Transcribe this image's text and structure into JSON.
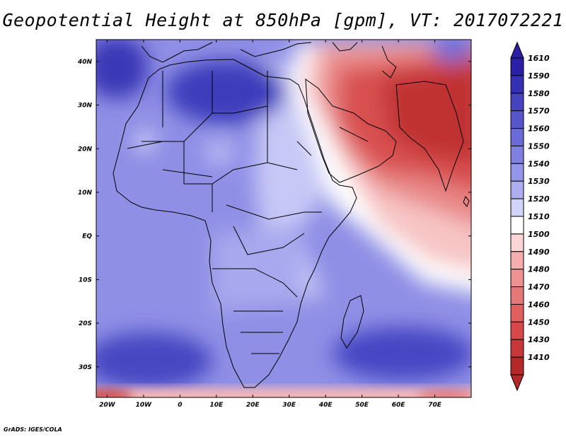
{
  "title": "Geopotential Height at 850hPa [gpm], VT: 2017072221",
  "credit": "GrADS: IGES/COLA",
  "map": {
    "lon_range": [
      -23,
      80
    ],
    "lat_range": [
      -37,
      45
    ],
    "lon_ticks": [
      {
        "lon": -20,
        "label": "20W"
      },
      {
        "lon": -10,
        "label": "10W"
      },
      {
        "lon": 0,
        "label": "0"
      },
      {
        "lon": 10,
        "label": "10E"
      },
      {
        "lon": 20,
        "label": "20E"
      },
      {
        "lon": 30,
        "label": "30E"
      },
      {
        "lon": 40,
        "label": "40E"
      },
      {
        "lon": 50,
        "label": "50E"
      },
      {
        "lon": 60,
        "label": "60E"
      },
      {
        "lon": 70,
        "label": "70E"
      }
    ],
    "lat_ticks": [
      {
        "lat": 40,
        "label": "40N"
      },
      {
        "lat": 30,
        "label": "30N"
      },
      {
        "lat": 20,
        "label": "20N"
      },
      {
        "lat": 10,
        "label": "10N"
      },
      {
        "lat": 0,
        "label": "EQ"
      },
      {
        "lat": -10,
        "label": "10S"
      },
      {
        "lat": -20,
        "label": "20S"
      },
      {
        "lat": -30,
        "label": "30S"
      }
    ]
  },
  "colorbar": {
    "levels": [
      {
        "label": "1610",
        "color": "#2a1fa6"
      },
      {
        "label": "1590",
        "color": "#3530b3"
      },
      {
        "label": "1580",
        "color": "#4444c0"
      },
      {
        "label": "1570",
        "color": "#5656cc"
      },
      {
        "label": "1560",
        "color": "#6a6ad8"
      },
      {
        "label": "1550",
        "color": "#7f80e0"
      },
      {
        "label": "1540",
        "color": "#9595e8"
      },
      {
        "label": "1530",
        "color": "#adaef0"
      },
      {
        "label": "1520",
        "color": "#d2d3f8"
      },
      {
        "label": "1510",
        "color": "#ffffff"
      },
      {
        "label": "1500",
        "color": "#fbd6d6"
      },
      {
        "label": "1490",
        "color": "#f5adad"
      },
      {
        "label": "1480",
        "color": "#ee9191"
      },
      {
        "label": "1470",
        "color": "#e87878"
      },
      {
        "label": "1460",
        "color": "#e06060"
      },
      {
        "label": "1450",
        "color": "#d84848"
      },
      {
        "label": "1430",
        "color": "#c83838"
      },
      {
        "label": "1410",
        "color": "#b52828"
      }
    ],
    "top_arrow_color": "#2a1fa6",
    "bottom_arrow_color": "#b52828"
  }
}
